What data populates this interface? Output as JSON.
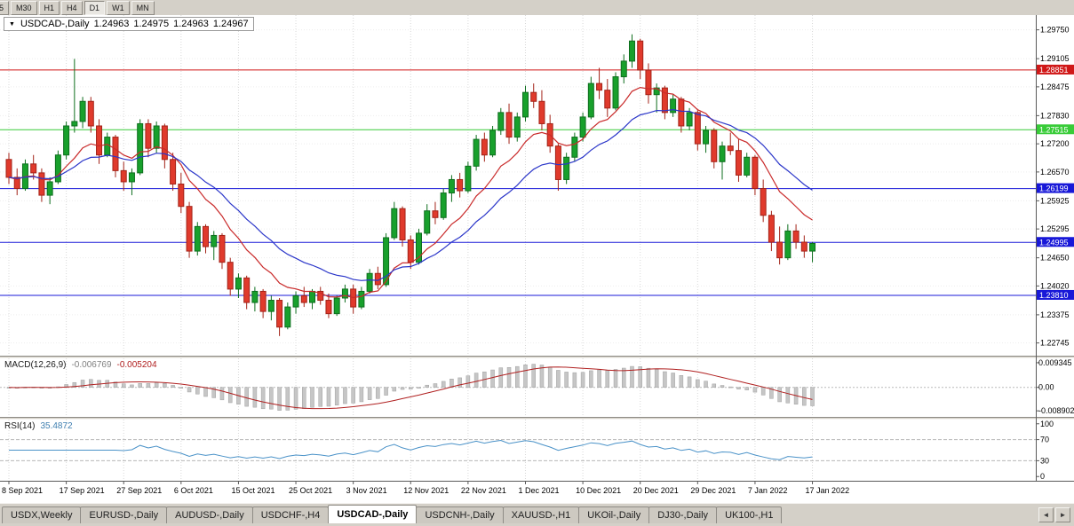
{
  "toolbar": {
    "timeframes": [
      {
        "label": "5",
        "active": false
      },
      {
        "label": "M30",
        "active": false
      },
      {
        "label": "H1",
        "active": false
      },
      {
        "label": "H4",
        "active": false
      },
      {
        "label": "D1",
        "active": true
      },
      {
        "label": "W1",
        "active": false
      },
      {
        "label": "MN",
        "active": false
      }
    ]
  },
  "chart": {
    "title": "USDCAD-,Daily",
    "open": "1.24963",
    "high": "1.24975",
    "low": "1.24963",
    "close": "1.24967"
  },
  "indicators": {
    "macd": {
      "name": "MACD(12,26,9)",
      "value1": "-0.006769",
      "value2": "-0.005204"
    },
    "rsi": {
      "name": "RSI(14)",
      "value": "35.4872"
    }
  },
  "icons": {
    "collapse": "▼",
    "scroll_left": "◄",
    "scroll_right": "►"
  },
  "colors": {
    "bull": "#18a02c",
    "bull_border": "#0e6e1e",
    "bear": "#e03a2c",
    "bear_border": "#a32318",
    "macd_hist": "#c6c6c6",
    "macd_hist_border": "#a0a0a0",
    "macd_signal": "#b02020",
    "rsi_line": "#4a92c8",
    "grid": "#d8d8d8",
    "axis_text": "#000000"
  },
  "chart_data": {
    "type": "candlestick",
    "symbol": "USDCAD-",
    "timeframe": "Daily",
    "y_domain": [
      1.2246,
      1.3008
    ],
    "price_ticks": [
      "1.29750",
      "1.29105",
      "1.28475",
      "1.27830",
      "1.27200",
      "1.26570",
      "1.25925",
      "1.25295",
      "1.24650",
      "1.24020",
      "1.23375",
      "1.22745"
    ],
    "date_ticks": [
      "8 Sep 2021",
      "17 Sep 2021",
      "27 Sep 2021",
      "6 Oct 2021",
      "15 Oct 2021",
      "25 Oct 2021",
      "3 Nov 2021",
      "12 Nov 2021",
      "22 Nov 2021",
      "1 Dec 2021",
      "10 Dec 2021",
      "20 Dec 2021",
      "29 Dec 2021",
      "7 Jan 2022",
      "17 Jan 2022"
    ],
    "candles_per_date_tick": 7,
    "levels": [
      {
        "value": 1.28851,
        "label": "1.28851",
        "color": "#d01818"
      },
      {
        "value": 1.27515,
        "label": "1.27515",
        "color": "#38cc38"
      },
      {
        "value": 1.26199,
        "label": "1.26199",
        "color": "#1818d8"
      },
      {
        "value": 1.24995,
        "label": "1.24995",
        "color": "#1818d8"
      },
      {
        "value": 1.2381,
        "label": "1.23810",
        "color": "#1818d8"
      }
    ],
    "ma_overlays": [
      {
        "period": 10,
        "color": "#c92a2a"
      },
      {
        "period": 20,
        "color": "#2b36c9"
      }
    ],
    "macd": {
      "fast": 12,
      "slow": 26,
      "signal": 9,
      "axis_ticks": [
        "0.009345",
        "0.00",
        "-0.008902"
      ],
      "y_domain": [
        -0.0112,
        0.011
      ]
    },
    "rsi": {
      "period": 14,
      "axis_ticks": [
        "100",
        "70",
        "30",
        "0"
      ],
      "levels": [
        70,
        30
      ],
      "y_domain": [
        -8,
        108
      ]
    },
    "candles": [
      [
        1.2685,
        1.27,
        1.263,
        1.2645
      ],
      [
        1.2645,
        1.2665,
        1.2605,
        1.262
      ],
      [
        1.262,
        1.2685,
        1.2615,
        1.2675
      ],
      [
        1.2675,
        1.2695,
        1.264,
        1.2655
      ],
      [
        1.2655,
        1.2665,
        1.259,
        1.2605
      ],
      [
        1.2605,
        1.2645,
        1.2585,
        1.2635
      ],
      [
        1.2635,
        1.2705,
        1.263,
        1.2695
      ],
      [
        1.2695,
        1.277,
        1.2685,
        1.276
      ],
      [
        1.276,
        1.291,
        1.2745,
        1.277
      ],
      [
        1.277,
        1.2825,
        1.2755,
        1.2815
      ],
      [
        1.2815,
        1.2825,
        1.2745,
        1.276
      ],
      [
        1.276,
        1.2775,
        1.2675,
        1.2695
      ],
      [
        1.2695,
        1.2745,
        1.269,
        1.2735
      ],
      [
        1.2735,
        1.274,
        1.2645,
        1.266
      ],
      [
        1.266,
        1.268,
        1.2615,
        1.2635
      ],
      [
        1.2635,
        1.2665,
        1.2605,
        1.2655
      ],
      [
        1.2655,
        1.2775,
        1.265,
        1.2765
      ],
      [
        1.2765,
        1.2775,
        1.269,
        1.271
      ],
      [
        1.271,
        1.277,
        1.27,
        1.276
      ],
      [
        1.276,
        1.2765,
        1.2665,
        1.2685
      ],
      [
        1.2685,
        1.27,
        1.2615,
        1.263
      ],
      [
        1.263,
        1.2655,
        1.2565,
        1.258
      ],
      [
        1.258,
        1.259,
        1.2465,
        1.248
      ],
      [
        1.248,
        1.2545,
        1.247,
        1.2535
      ],
      [
        1.2535,
        1.254,
        1.2475,
        1.249
      ],
      [
        1.249,
        1.2525,
        1.246,
        1.2515
      ],
      [
        1.2515,
        1.252,
        1.244,
        1.2455
      ],
      [
        1.2455,
        1.2465,
        1.238,
        1.2395
      ],
      [
        1.2395,
        1.243,
        1.2375,
        1.242
      ],
      [
        1.242,
        1.2425,
        1.235,
        1.2365
      ],
      [
        1.2365,
        1.24,
        1.2345,
        1.239
      ],
      [
        1.239,
        1.2395,
        1.233,
        1.2345
      ],
      [
        1.2345,
        1.238,
        1.2325,
        1.237
      ],
      [
        1.237,
        1.2375,
        1.229,
        1.231
      ],
      [
        1.231,
        1.2365,
        1.2305,
        1.2355
      ],
      [
        1.2355,
        1.239,
        1.234,
        1.238
      ],
      [
        1.238,
        1.24,
        1.2355,
        1.2365
      ],
      [
        1.2365,
        1.2395,
        1.235,
        1.239
      ],
      [
        1.239,
        1.24,
        1.236,
        1.237
      ],
      [
        1.237,
        1.2385,
        1.233,
        1.234
      ],
      [
        1.234,
        1.238,
        1.2335,
        1.2375
      ],
      [
        1.2375,
        1.2405,
        1.2365,
        1.2395
      ],
      [
        1.2395,
        1.2405,
        1.234,
        1.2355
      ],
      [
        1.2355,
        1.24,
        1.235,
        1.239
      ],
      [
        1.239,
        1.244,
        1.2385,
        1.243
      ],
      [
        1.243,
        1.2445,
        1.2395,
        1.2405
      ],
      [
        1.2405,
        1.252,
        1.24,
        1.251
      ],
      [
        1.251,
        1.259,
        1.2505,
        1.2575
      ],
      [
        1.2575,
        1.258,
        1.249,
        1.2505
      ],
      [
        1.2505,
        1.2515,
        1.244,
        1.2455
      ],
      [
        1.2455,
        1.253,
        1.245,
        1.252
      ],
      [
        1.252,
        1.2585,
        1.2515,
        1.257
      ],
      [
        1.257,
        1.259,
        1.254,
        1.2555
      ],
      [
        1.2555,
        1.262,
        1.255,
        1.261
      ],
      [
        1.261,
        1.265,
        1.259,
        1.264
      ],
      [
        1.264,
        1.2655,
        1.26,
        1.2615
      ],
      [
        1.2615,
        1.268,
        1.261,
        1.267
      ],
      [
        1.267,
        1.274,
        1.266,
        1.273
      ],
      [
        1.273,
        1.2745,
        1.268,
        1.2695
      ],
      [
        1.2695,
        1.276,
        1.269,
        1.275
      ],
      [
        1.275,
        1.28,
        1.274,
        1.279
      ],
      [
        1.279,
        1.281,
        1.272,
        1.2735
      ],
      [
        1.2735,
        1.279,
        1.2725,
        1.278
      ],
      [
        1.278,
        1.285,
        1.277,
        1.2835
      ],
      [
        1.2835,
        1.2855,
        1.28,
        1.2815
      ],
      [
        1.2815,
        1.284,
        1.275,
        1.2765
      ],
      [
        1.2765,
        1.2785,
        1.27,
        1.2715
      ],
      [
        1.2715,
        1.272,
        1.2615,
        1.264
      ],
      [
        1.264,
        1.27,
        1.263,
        1.269
      ],
      [
        1.269,
        1.2745,
        1.268,
        1.2735
      ],
      [
        1.2735,
        1.279,
        1.2725,
        1.278
      ],
      [
        1.278,
        1.287,
        1.2775,
        1.2855
      ],
      [
        1.2855,
        1.289,
        1.282,
        1.284
      ],
      [
        1.284,
        1.2865,
        1.278,
        1.28
      ],
      [
        1.28,
        1.288,
        1.2795,
        1.287
      ],
      [
        1.287,
        1.292,
        1.2855,
        1.2905
      ],
      [
        1.2905,
        1.2965,
        1.289,
        1.295
      ],
      [
        1.295,
        1.2955,
        1.2865,
        1.2885
      ],
      [
        1.2885,
        1.29,
        1.281,
        1.283
      ],
      [
        1.283,
        1.2855,
        1.279,
        1.2845
      ],
      [
        1.2845,
        1.285,
        1.2775,
        1.279
      ],
      [
        1.279,
        1.283,
        1.278,
        1.282
      ],
      [
        1.282,
        1.2825,
        1.2745,
        1.276
      ],
      [
        1.276,
        1.28,
        1.275,
        1.279
      ],
      [
        1.279,
        1.2795,
        1.2705,
        1.272
      ],
      [
        1.272,
        1.276,
        1.27,
        1.275
      ],
      [
        1.275,
        1.2755,
        1.2665,
        1.268
      ],
      [
        1.268,
        1.2725,
        1.264,
        1.2715
      ],
      [
        1.2715,
        1.2745,
        1.2695,
        1.2705
      ],
      [
        1.2705,
        1.273,
        1.2635,
        1.265
      ],
      [
        1.265,
        1.27,
        1.2645,
        1.269
      ],
      [
        1.269,
        1.2695,
        1.2605,
        1.262
      ],
      [
        1.262,
        1.264,
        1.2545,
        1.256
      ],
      [
        1.256,
        1.257,
        1.248,
        1.25
      ],
      [
        1.25,
        1.2535,
        1.245,
        1.2465
      ],
      [
        1.2465,
        1.254,
        1.246,
        1.2525
      ],
      [
        1.2525,
        1.254,
        1.2485,
        1.25
      ],
      [
        1.25,
        1.2515,
        1.2465,
        1.248
      ],
      [
        1.248,
        1.25,
        1.2455,
        1.2497
      ]
    ]
  },
  "tabs": [
    {
      "label": "USDX,Weekly",
      "active": false
    },
    {
      "label": "EURUSD-,Daily",
      "active": false
    },
    {
      "label": "AUDUSD-,Daily",
      "active": false
    },
    {
      "label": "USDCHF-,H4",
      "active": false
    },
    {
      "label": "USDCAD-,Daily",
      "active": true
    },
    {
      "label": "USDCNH-,Daily",
      "active": false
    },
    {
      "label": "XAUUSD-,H1",
      "active": false
    },
    {
      "label": "UKOil-,Daily",
      "active": false
    },
    {
      "label": "DJ30-,Daily",
      "active": false
    },
    {
      "label": "UK100-,H1",
      "active": false
    }
  ]
}
